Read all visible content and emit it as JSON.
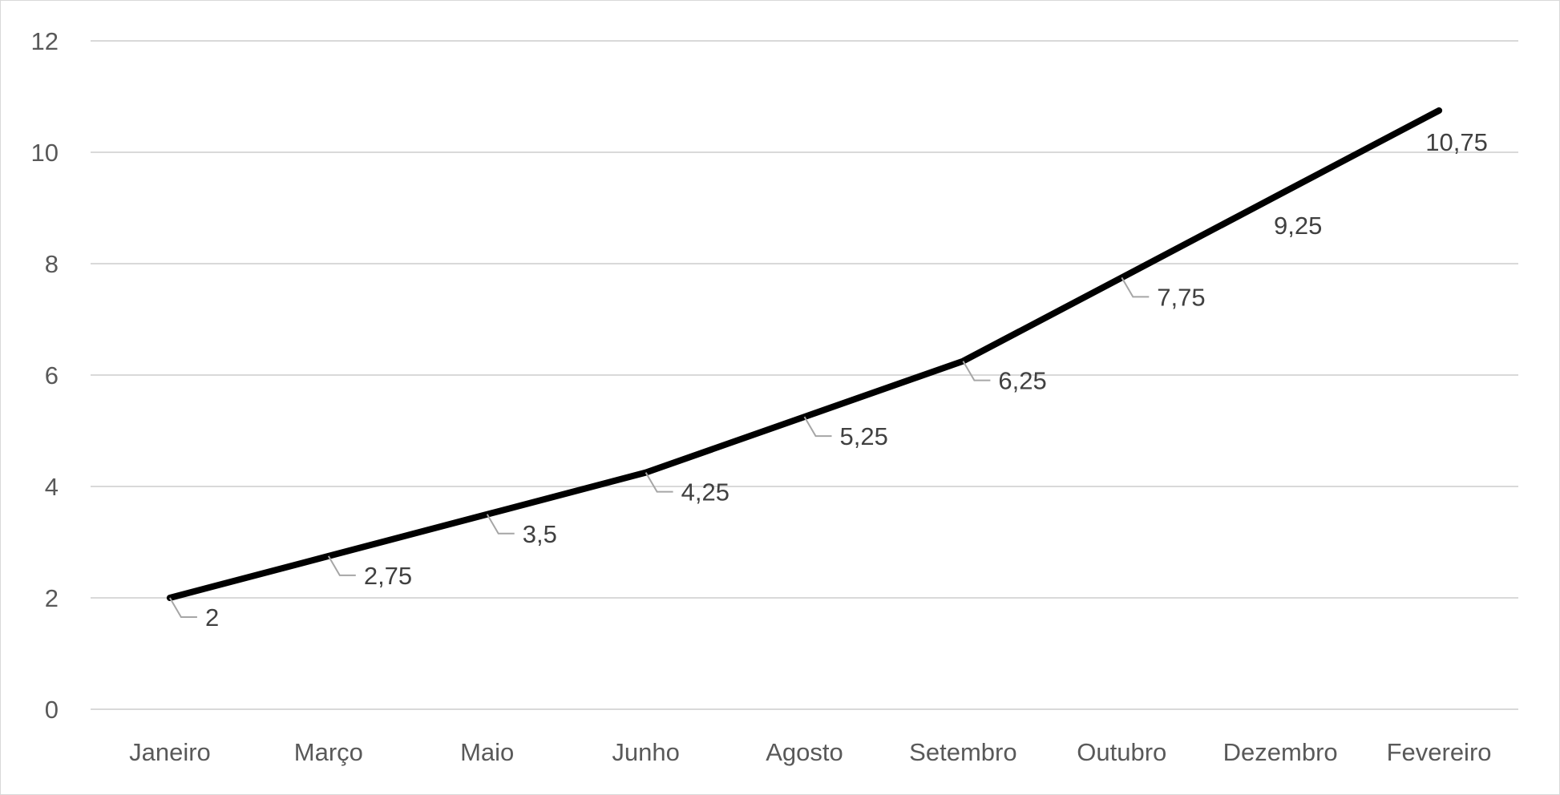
{
  "chart_data": {
    "type": "line",
    "categories": [
      "Janeiro",
      "Março",
      "Maio",
      "Junho",
      "Agosto",
      "Setembro",
      "Outubro",
      "Dezembro",
      "Fevereiro"
    ],
    "series": [
      {
        "values": [
          2,
          2.75,
          3.5,
          4.25,
          5.25,
          6.25,
          7.75,
          9.25,
          10.75
        ]
      }
    ],
    "data_labels": [
      "2",
      "2,75",
      "3,5",
      "4,25",
      "5,25",
      "6,25",
      "7,75",
      "9,25",
      "10,75"
    ],
    "y_ticks": [
      "0",
      "2",
      "4",
      "6",
      "8",
      "10",
      "12"
    ],
    "ylim": [
      0,
      12
    ],
    "title": "",
    "xlabel": "",
    "ylabel": "",
    "grid": "horizontal",
    "legend": "none",
    "colors": {
      "line": "#000000",
      "grid": "#d9d9d9",
      "leader": "#a6a6a6",
      "tick_text": "#595959",
      "label_text": "#404040"
    }
  }
}
